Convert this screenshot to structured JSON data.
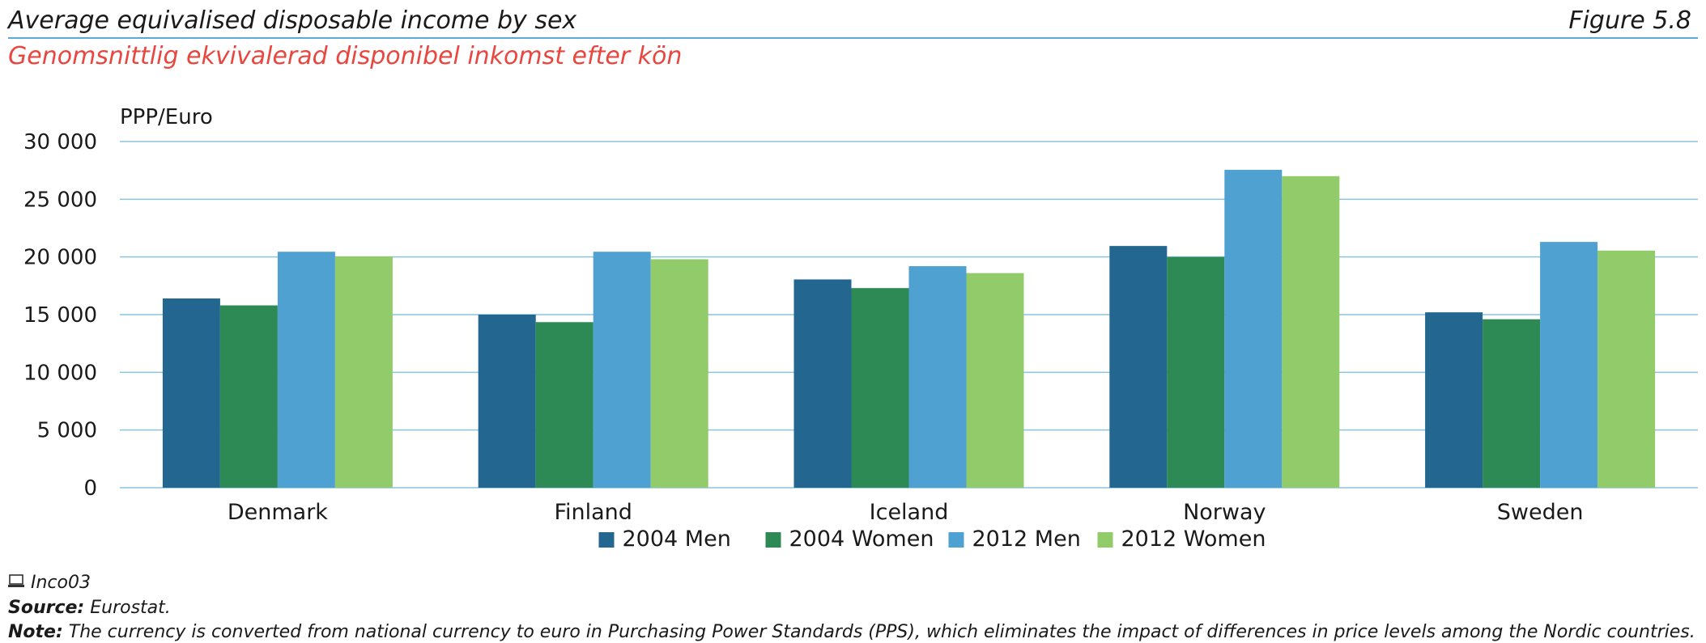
{
  "header": {
    "title": "Average equivalised disposable income by sex",
    "figure_number": "Figure 5.8",
    "subtitle": "Genomsnittlig ekvivalerad disponibel inkomst efter kön"
  },
  "chart_data": {
    "type": "bar",
    "ylabel": "PPP/Euro",
    "ylim": [
      0,
      30000
    ],
    "yticks": [
      0,
      5000,
      10000,
      15000,
      20000,
      25000,
      30000
    ],
    "ytick_labels": [
      "0",
      "5 000",
      "10 000",
      "15 000",
      "20 000",
      "25 000",
      "30 000"
    ],
    "grid": true,
    "legend_position": "bottom",
    "categories": [
      "Denmark",
      "Finland",
      "Iceland",
      "Norway",
      "Sweden"
    ],
    "series": [
      {
        "name": "2004 Men",
        "color": "#23668f",
        "values": [
          16400,
          15000,
          18050,
          20950,
          15200
        ]
      },
      {
        "name": "2004 Women",
        "color": "#2e8a55",
        "values": [
          15800,
          14350,
          17300,
          20000,
          14600
        ]
      },
      {
        "name": "2012 Men",
        "color": "#4fa1d1",
        "values": [
          20450,
          20450,
          19200,
          27550,
          21300
        ]
      },
      {
        "name": "2012 Women",
        "color": "#92cb6a",
        "values": [
          20050,
          19800,
          18600,
          27000,
          20550
        ]
      }
    ]
  },
  "footer": {
    "ref_code": "Inco03",
    "source_label": "Source:",
    "source_text": "Eurostat.",
    "note_label": "Note:",
    "note_text": "The currency is converted from national currency to euro in Purchasing Power Standards (PPS), which eliminates the impact of differences in price levels among the Nordic countries."
  },
  "colors": {
    "title_rule": "#5aa9d6",
    "subtitle": "#e8463f",
    "gridline": "#8cc4dd"
  }
}
